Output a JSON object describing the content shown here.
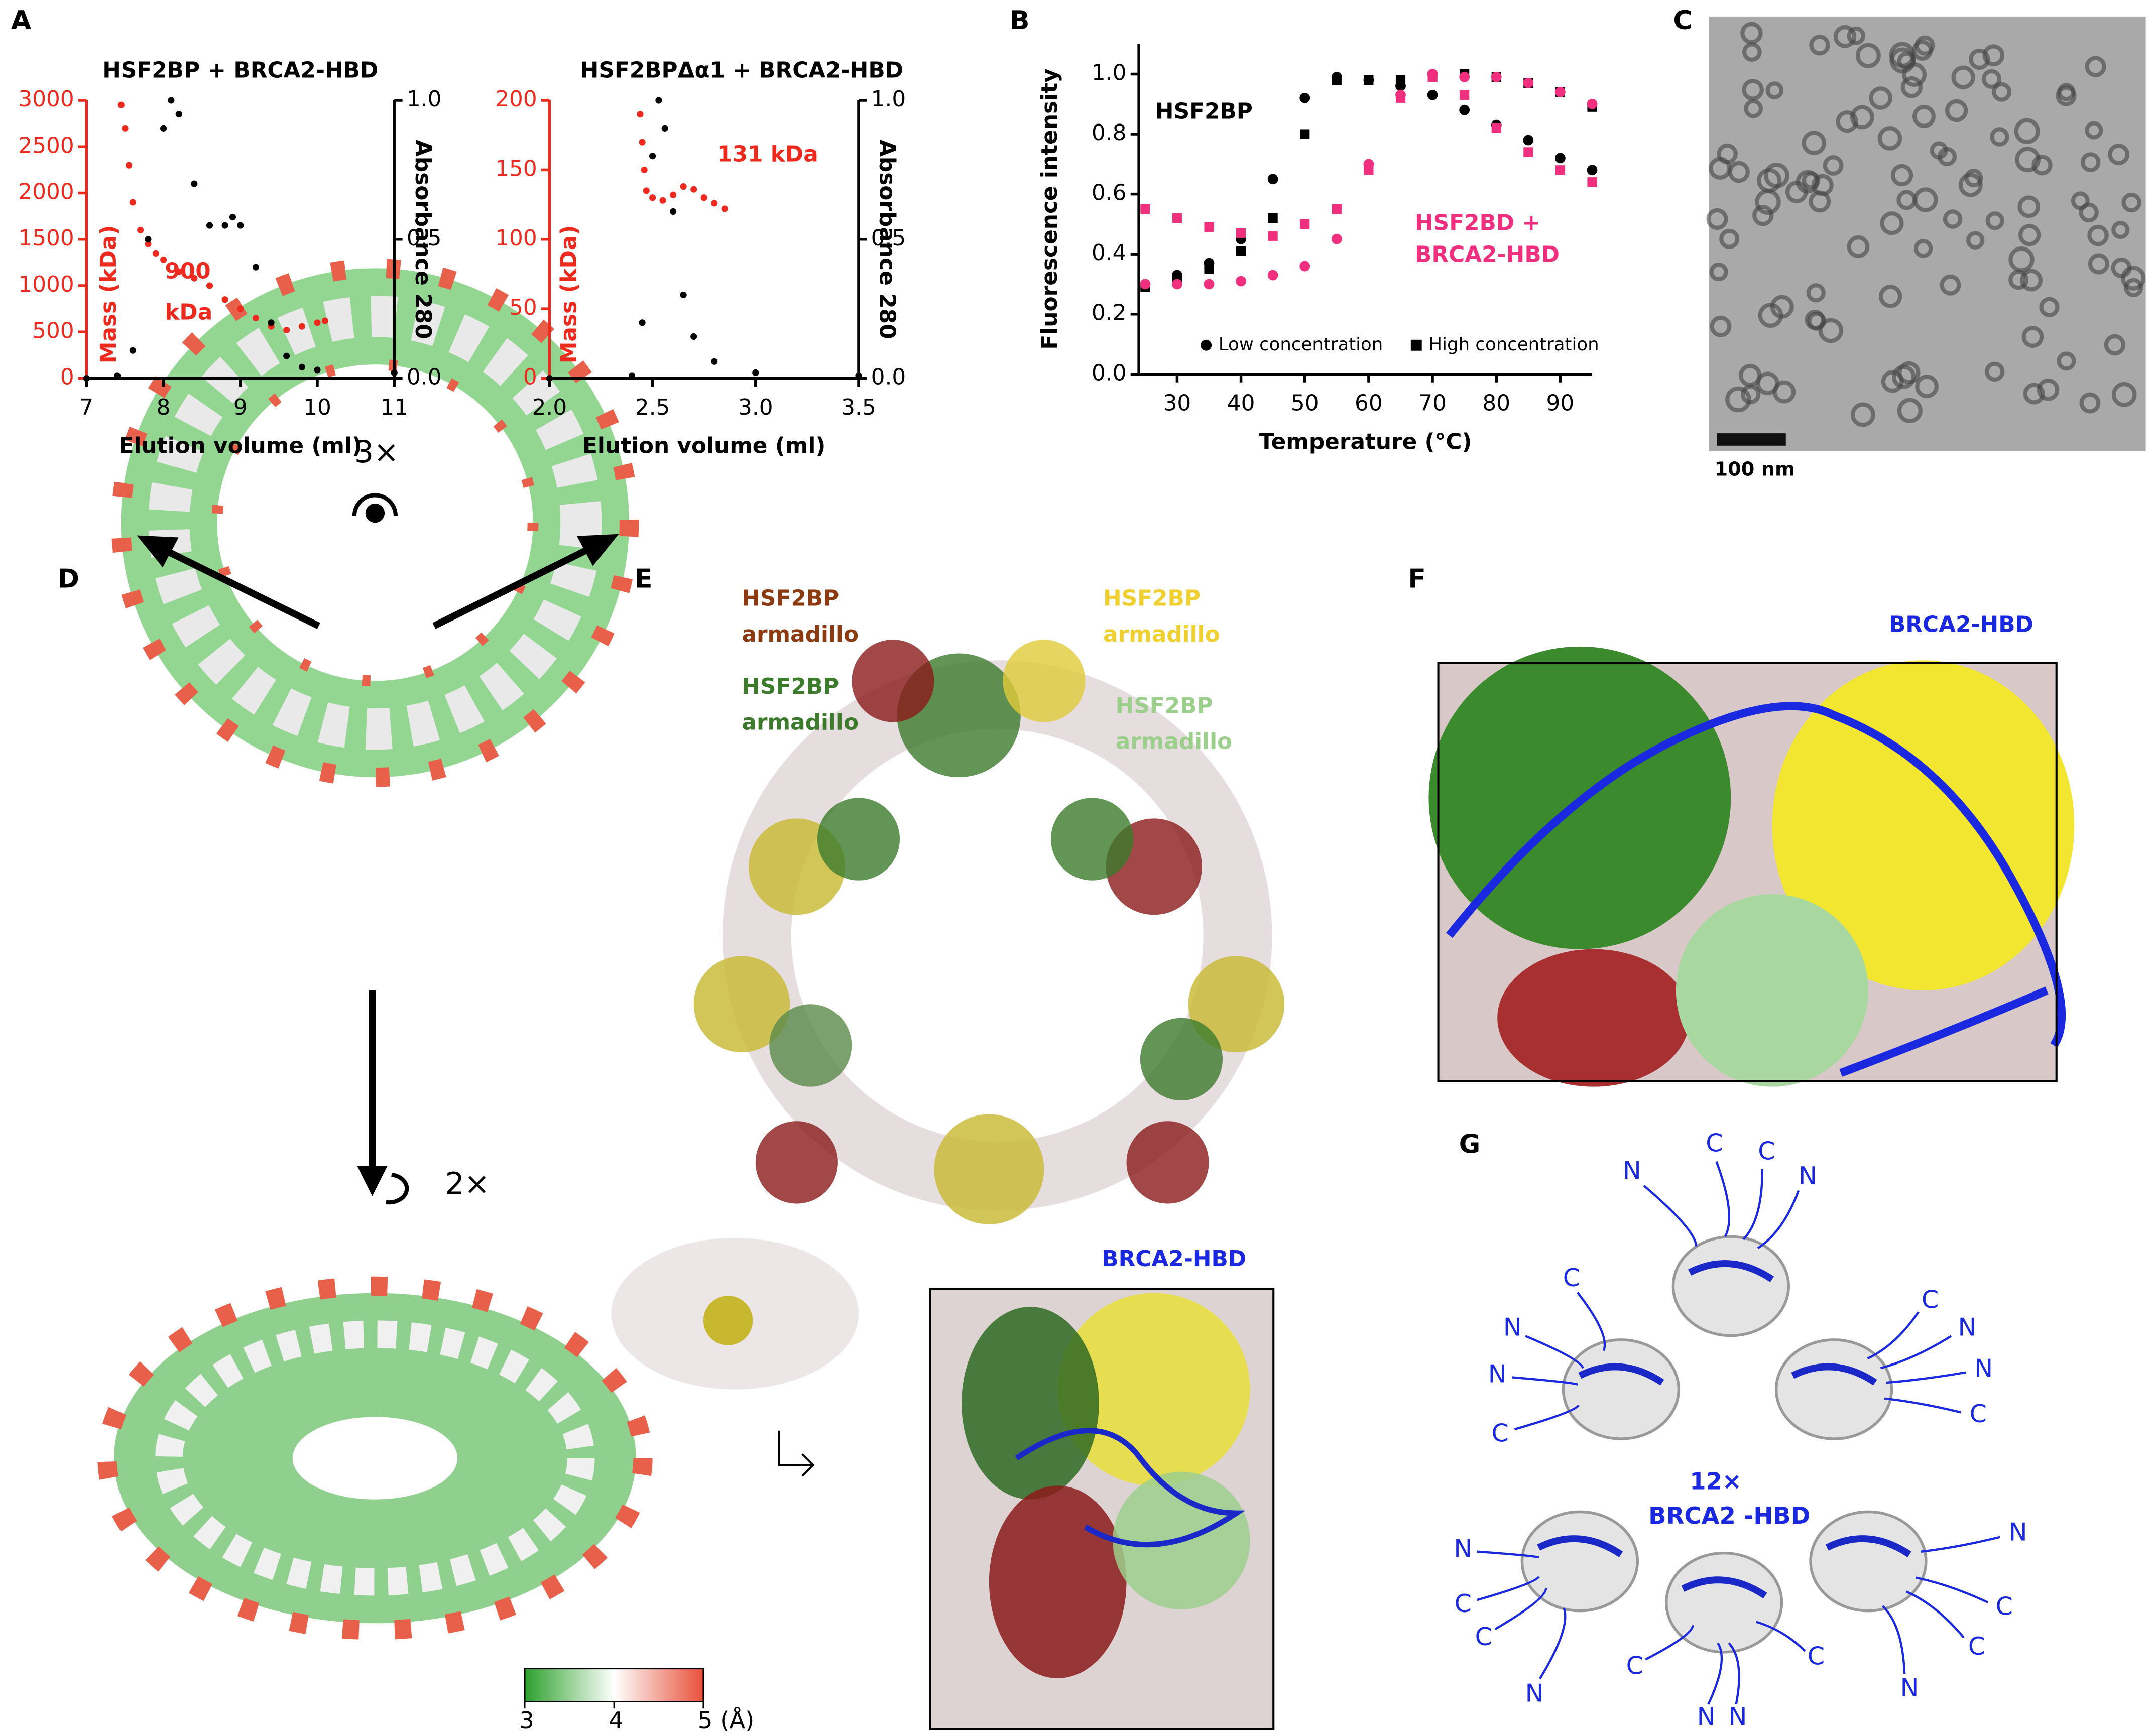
{
  "chart_data": [
    {
      "type": "line",
      "title": "HSF2BP + BRCA2-HBD",
      "xlabel": "Elution volume (ml)",
      "ylabel": "Mass (kDa)",
      "y2label": "Absorbance 280",
      "xlim": [
        7,
        11
      ],
      "xticks": [
        7,
        8,
        9,
        10,
        11
      ],
      "ylim": [
        0,
        3000
      ],
      "yticks": [
        0,
        500,
        1000,
        1500,
        2000,
        2500,
        3000
      ],
      "y2lim": [
        0,
        1
      ],
      "y2ticks": [
        {
          "value": 0,
          "label": "0.0"
        },
        {
          "value": 0.5,
          "label": "0.5"
        },
        {
          "value": 1,
          "label": "1.0"
        }
      ],
      "annotations": [
        "900",
        "kDa"
      ],
      "series": [
        {
          "color": "#ee2a1e",
          "x": [
            7.45,
            7.5,
            7.55,
            7.6,
            7.7,
            7.8,
            7.9,
            8.0,
            8.2,
            8.4,
            8.6,
            8.8,
            9.0,
            9.2,
            9.4,
            9.6,
            9.8,
            10.0,
            10.1
          ],
          "values": [
            2950,
            2700,
            2300,
            1900,
            1600,
            1450,
            1350,
            1280,
            1150,
            1080,
            1000,
            850,
            750,
            650,
            560,
            520,
            560,
            600,
            620
          ]
        },
        {
          "color": "#000000",
          "axis": "y2",
          "x": [
            7,
            7.4,
            7.6,
            7.8,
            8.0,
            8.1,
            8.2,
            8.4,
            8.6,
            8.8,
            8.9,
            9.0,
            9.2,
            9.4,
            9.6,
            9.8,
            10,
            11
          ],
          "values": [
            0,
            0.01,
            0.1,
            0.5,
            0.9,
            1.0,
            0.95,
            0.7,
            0.55,
            0.55,
            0.58,
            0.55,
            0.4,
            0.2,
            0.08,
            0.04,
            0.03,
            0.02
          ]
        }
      ]
    },
    {
      "type": "line",
      "title": "HSF2BPΔα1 + BRCA2-HBD",
      "xlabel": "Elution volume (ml)",
      "ylabel": "Mass (kDa)",
      "y2label": "Absorbance 280",
      "xlim": [
        2,
        3.5
      ],
      "xticks": [
        {
          "value": 2,
          "label": "2.0"
        },
        {
          "value": 2.5,
          "label": "2.5"
        },
        {
          "value": 3,
          "label": "3.0"
        },
        {
          "value": 3.5,
          "label": "3.5"
        }
      ],
      "ylim": [
        0,
        200
      ],
      "yticks": [
        0,
        50,
        100,
        150,
        200
      ],
      "y2lim": [
        0,
        1
      ],
      "y2ticks": [
        {
          "value": 0,
          "label": "0.0"
        },
        {
          "value": 0.5,
          "label": "0.5"
        },
        {
          "value": 1,
          "label": "1.0"
        }
      ],
      "annotations": [
        "131 kDa"
      ],
      "series": [
        {
          "color": "#ee2a1e",
          "x": [
            2.44,
            2.45,
            2.46,
            2.47,
            2.5,
            2.55,
            2.6,
            2.65,
            2.7,
            2.75,
            2.8,
            2.85
          ],
          "values": [
            190,
            170,
            150,
            135,
            130,
            128,
            132,
            138,
            136,
            130,
            126,
            122
          ]
        },
        {
          "color": "#000000",
          "axis": "y2",
          "x": [
            2.0,
            2.4,
            2.45,
            2.5,
            2.53,
            2.56,
            2.6,
            2.65,
            2.7,
            2.8,
            3.0,
            3.5
          ],
          "values": [
            0,
            0.01,
            0.2,
            0.8,
            1.0,
            0.9,
            0.6,
            0.3,
            0.15,
            0.06,
            0.02,
            0.01
          ]
        }
      ]
    },
    {
      "type": "scatter",
      "xlabel": "Temperature (°C)",
      "ylabel": "Fluorescence intensity",
      "xlim": [
        24,
        95
      ],
      "xticks": [
        30,
        40,
        50,
        60,
        70,
        80,
        90
      ],
      "ylim": [
        0,
        1.1
      ],
      "yticks": [
        {
          "value": 0,
          "label": "0.0"
        },
        {
          "value": 0.2,
          "label": "0.2"
        },
        {
          "value": 0.4,
          "label": "0.4"
        },
        {
          "value": 0.6,
          "label": "0.6"
        },
        {
          "value": 0.8,
          "label": "0.8"
        },
        {
          "value": 1,
          "label": "1.0"
        }
      ],
      "annotations": [
        "HSF2BP",
        "HSF2BD +",
        "BRCA2-HBD"
      ],
      "legend": [
        {
          "label": "Low concentration",
          "marker": "circle"
        },
        {
          "label": "High concentration",
          "marker": "square"
        }
      ],
      "x": [
        25,
        30,
        35,
        40,
        45,
        50,
        55,
        60,
        65,
        70,
        75,
        80,
        85,
        90,
        95
      ],
      "series": [
        {
          "color": "#000000",
          "marker": "circle",
          "values": [
            0.3,
            0.33,
            0.37,
            0.45,
            0.65,
            0.92,
            0.99,
            0.98,
            0.96,
            0.93,
            0.88,
            0.83,
            0.78,
            0.72,
            0.68
          ]
        },
        {
          "color": "#000000",
          "marker": "square",
          "values": [
            0.29,
            0.31,
            0.35,
            0.41,
            0.52,
            0.8,
            0.98,
            0.98,
            0.98,
            0.99,
            1.0,
            0.99,
            0.97,
            0.94,
            0.89
          ]
        },
        {
          "color": "#f0307e",
          "marker": "circle",
          "values": [
            0.3,
            0.3,
            0.3,
            0.31,
            0.33,
            0.36,
            0.45,
            0.7,
            0.93,
            1.0,
            0.99,
            0.99,
            0.97,
            0.94,
            0.9
          ]
        },
        {
          "color": "#f0307e",
          "marker": "square",
          "values": [
            0.55,
            0.52,
            0.49,
            0.47,
            0.46,
            0.5,
            0.55,
            0.68,
            0.92,
            0.99,
            0.93,
            0.82,
            0.74,
            0.68,
            0.64
          ]
        }
      ]
    }
  ],
  "figure": {
    "panel_labels": [
      "A",
      "B",
      "C",
      "D",
      "E",
      "F",
      "G"
    ],
    "scale_bar": "100 nm",
    "symmetry": [
      "3×",
      "2×"
    ],
    "colorbar_ticks": [
      3,
      4,
      {
        "value": 5,
        "label": "5 (Å)"
      }
    ],
    "e_labels": [
      [
        "HSF2BP",
        "armadillo"
      ],
      [
        "HSF2BP",
        "armadillo"
      ],
      [
        "HSF2BP",
        "armadillo"
      ],
      [
        "HSF2BP",
        "armadillo"
      ]
    ],
    "e_inset_label": "BRCA2-HBD",
    "f_label": "BRCA2-HBD",
    "g_center": [
      "12×",
      "BRCA2 -HBD"
    ],
    "g_termini": [
      "N",
      "C",
      "C",
      "N",
      "C",
      "N",
      "N",
      "C",
      "C",
      "N",
      "N",
      "C",
      "N",
      "C",
      "C",
      "N",
      "C",
      "N",
      "N",
      "C",
      "N",
      "C",
      "C",
      "N"
    ]
  }
}
